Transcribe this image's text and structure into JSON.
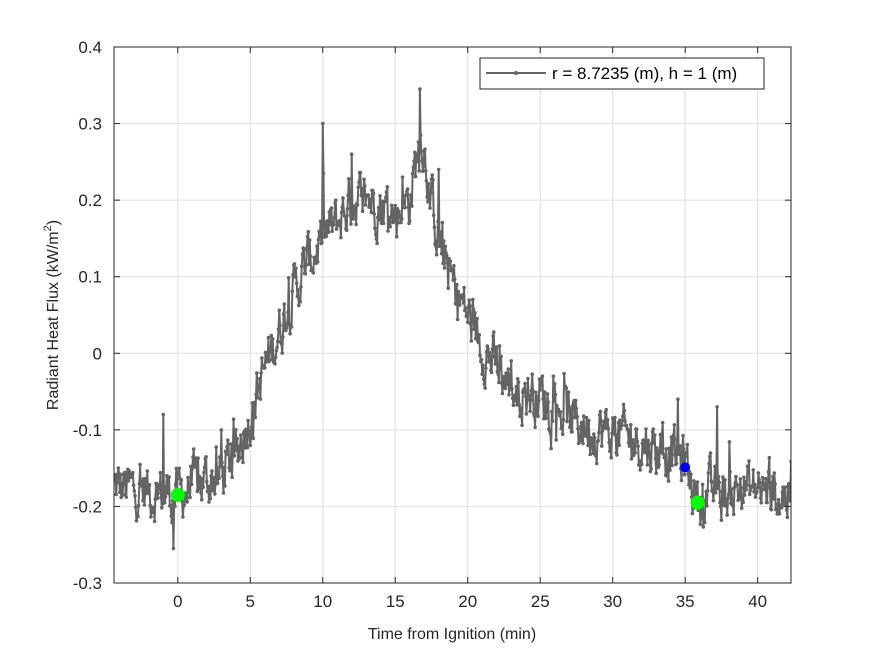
{
  "chart_data": {
    "type": "line",
    "title": "",
    "xlabel": "Time from Ignition (min)",
    "ylabel": "Radiant Heat Flux (kW/m",
    "ylabel_sup": "2",
    "ylabel_close": ")",
    "xlim": [
      -4.4,
      42.3
    ],
    "ylim": [
      -0.3,
      0.4
    ],
    "xticks": [
      0,
      5,
      10,
      15,
      20,
      25,
      30,
      35,
      40
    ],
    "xtick_labels": [
      "0",
      "5",
      "10",
      "15",
      "20",
      "25",
      "30",
      "35",
      "40"
    ],
    "yticks": [
      -0.3,
      -0.2,
      -0.1,
      0,
      0.1,
      0.2,
      0.3,
      0.4
    ],
    "ytick_labels": [
      "-0.3",
      "-0.2",
      "-0.1",
      "0",
      "0.1",
      "0.2",
      "0.3",
      "0.4"
    ],
    "grid": true,
    "legend_position": "northeast",
    "series": [
      {
        "name": "r = 8.7235 (m), h = 1 (m)",
        "color": "#646464",
        "marker": "dot",
        "trend_x": [
          -4.4,
          -2,
          0,
          2,
          3,
          4,
          5,
          6,
          7,
          8,
          9,
          10,
          11,
          12,
          13,
          14,
          15,
          16,
          16.8,
          17.5,
          18,
          19,
          20,
          21,
          22,
          23,
          24,
          25,
          26,
          27,
          28,
          29,
          30,
          31,
          32,
          33,
          34,
          35,
          35.5,
          36,
          37,
          38,
          39,
          40,
          41,
          42.3
        ],
        "trend_y": [
          -0.175,
          -0.18,
          -0.185,
          -0.165,
          -0.16,
          -0.13,
          -0.08,
          -0.02,
          0.03,
          0.08,
          0.12,
          0.15,
          0.17,
          0.2,
          0.205,
          0.195,
          0.18,
          0.2,
          0.29,
          0.2,
          0.15,
          0.09,
          0.05,
          0.01,
          -0.02,
          -0.045,
          -0.05,
          -0.055,
          -0.07,
          -0.085,
          -0.095,
          -0.1,
          -0.105,
          -0.11,
          -0.115,
          -0.125,
          -0.13,
          -0.14,
          -0.175,
          -0.19,
          -0.18,
          -0.185,
          -0.175,
          -0.18,
          -0.185,
          -0.185
        ],
        "noise_amplitude": 0.028,
        "spike_points": [
          [
            -1,
            -0.08
          ],
          [
            3,
            -0.1
          ],
          [
            10.0,
            0.3
          ],
          [
            12,
            0.26
          ],
          [
            15.5,
            0.23
          ],
          [
            16.7,
            0.345
          ],
          [
            18,
            0.24
          ],
          [
            23,
            -0.01
          ],
          [
            26,
            -0.04
          ],
          [
            34.5,
            -0.06
          ],
          [
            37.2,
            -0.07
          ],
          [
            -0.3,
            -0.255
          ]
        ],
        "sample_step_min": 0.05
      }
    ],
    "markers": [
      {
        "name": "start-marker",
        "x": 0.0,
        "y": -0.185,
        "color": "#00ff00",
        "size": 7
      },
      {
        "name": "transition-marker",
        "x": 35.0,
        "y": -0.149,
        "color": "#0000ff",
        "size": 5
      },
      {
        "name": "end-marker",
        "x": 35.85,
        "y": -0.195,
        "color": "#00ff00",
        "size": 7
      }
    ]
  },
  "legend": {
    "label": "r = 8.7235 (m), h = 1 (m)"
  },
  "axes": {
    "xlabel": "Time from Ignition (min)",
    "ylabel_main": "Radiant Heat Flux (kW/m",
    "ylabel_sup": "2",
    "ylabel_close": ")"
  }
}
